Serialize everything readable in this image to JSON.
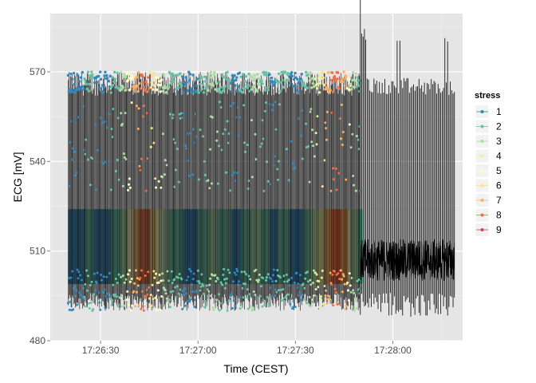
{
  "chart_data": {
    "type": "line",
    "xlabel": "Time (CEST)",
    "ylabel": "ECG [mV]",
    "x_ticks": [
      "17:26:30",
      "17:27:00",
      "17:27:30",
      "17:28:00"
    ],
    "x_tick_seconds": [
      30,
      60,
      90,
      120
    ],
    "x_range_seconds": [
      14.5,
      141.5
    ],
    "y_ticks": [
      480,
      510,
      540,
      570
    ],
    "ylim": [
      480,
      589.5
    ],
    "grid": true,
    "legend": {
      "title": "stress",
      "position": "right",
      "levels": [
        "1",
        "2",
        "3",
        "4",
        "5",
        "6",
        "7",
        "8",
        "9"
      ],
      "colors": [
        "#3288bd",
        "#66c2a5",
        "#abdda4",
        "#e6f598",
        "#ffffbf",
        "#fee08b",
        "#fdae61",
        "#f46d43",
        "#d53e4f"
      ]
    },
    "series": [
      {
        "stress_by_time": [
          {
            "from": 20,
            "to": 25,
            "stress": 1
          },
          {
            "from": 25,
            "to": 28,
            "stress": 2
          },
          {
            "from": 28,
            "to": 33,
            "stress": 1
          },
          {
            "from": 33,
            "to": 36,
            "stress": 2
          },
          {
            "from": 36,
            "to": 38,
            "stress": 3
          },
          {
            "from": 38,
            "to": 40,
            "stress": 5
          },
          {
            "from": 40,
            "to": 42,
            "stress": 7
          },
          {
            "from": 42,
            "to": 45,
            "stress": 8
          },
          {
            "from": 45,
            "to": 47,
            "stress": 6
          },
          {
            "from": 47,
            "to": 49,
            "stress": 5
          },
          {
            "from": 49,
            "to": 51,
            "stress": 3
          },
          {
            "from": 51,
            "to": 55,
            "stress": 2
          },
          {
            "from": 55,
            "to": 60,
            "stress": 1
          },
          {
            "from": 60,
            "to": 63,
            "stress": 2
          },
          {
            "from": 63,
            "to": 66,
            "stress": 3
          },
          {
            "from": 66,
            "to": 70,
            "stress": 2
          },
          {
            "from": 70,
            "to": 73,
            "stress": 1
          },
          {
            "from": 73,
            "to": 76,
            "stress": 2
          },
          {
            "from": 76,
            "to": 79,
            "stress": 3
          },
          {
            "from": 79,
            "to": 82,
            "stress": 2
          },
          {
            "from": 82,
            "to": 84,
            "stress": 1
          },
          {
            "from": 84,
            "to": 88,
            "stress": 2
          },
          {
            "from": 88,
            "to": 92,
            "stress": 1
          },
          {
            "from": 92,
            "to": 94,
            "stress": 2
          },
          {
            "from": 94,
            "to": 96,
            "stress": 3
          },
          {
            "from": 96,
            "to": 98,
            "stress": 4
          },
          {
            "from": 98,
            "to": 99,
            "stress": 6
          },
          {
            "from": 99,
            "to": 101,
            "stress": 7
          },
          {
            "from": 101,
            "to": 104,
            "stress": 8
          },
          {
            "from": 104,
            "to": 106,
            "stress": 7
          },
          {
            "from": 106,
            "to": 107,
            "stress": 5
          },
          {
            "from": 107,
            "to": 109,
            "stress": 3
          },
          {
            "from": 109,
            "to": 110,
            "stress": 2
          }
        ],
        "colored_span_seconds": [
          20,
          110
        ],
        "black_span_seconds": [
          110,
          139
        ],
        "colored_range_mV": [
          490,
          570
        ],
        "black_range_mV": [
          486,
          585
        ]
      }
    ]
  }
}
